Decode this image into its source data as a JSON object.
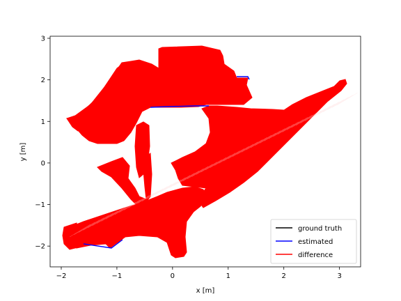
{
  "chart_data": {
    "type": "line",
    "title": "",
    "xlabel": "x [m]",
    "ylabel": "y [m]",
    "xlim": [
      -2.2,
      3.38
    ],
    "ylim": [
      -2.5,
      3.05
    ],
    "xticks": [
      -2,
      -1,
      0,
      1,
      2,
      3
    ],
    "xtick_labels": [
      "−2",
      "−1",
      "0",
      "1",
      "2",
      "3"
    ],
    "yticks": [
      -2,
      -1,
      0,
      1,
      2,
      3
    ],
    "ytick_labels": [
      "−2",
      "−1",
      "0",
      "1",
      "2",
      "3"
    ],
    "grid": false,
    "legend_position": "lower-right",
    "series": [
      {
        "name": "ground truth",
        "color": "#000000",
        "x": [
          -1.15,
          -1.0,
          -0.5,
          -0.2,
          0.2,
          0.6,
          1.0,
          1.4
        ],
        "y": [
          1.0,
          1.55,
          2.0,
          2.5,
          2.6,
          2.55,
          2.2,
          2.0
        ]
      },
      {
        "name": "estimated",
        "color": "#0000ff",
        "x": [
          -1.95,
          -1.7,
          -1.3,
          -1.1,
          -0.4,
          0.3,
          0.7,
          1.2,
          1.5,
          1.4,
          1.3,
          1.0,
          0.6,
          0.3,
          0.1,
          -0.2,
          -0.4,
          -0.3,
          0.6,
          1.5,
          2.5,
          3.1,
          2.0,
          0.8,
          -0.3,
          -1.2,
          -1.9,
          -1.7,
          -1.3,
          -1.1
        ],
        "y": [
          1.08,
          0.98,
          0.85,
          0.55,
          1.32,
          1.35,
          1.33,
          1.3,
          1.75,
          2.05,
          2.05,
          2.08,
          2.65,
          2.7,
          2.6,
          2.35,
          1.9,
          1.35,
          1.3,
          1.28,
          1.75,
          1.95,
          0.2,
          -0.6,
          -1.1,
          -1.55,
          -1.65,
          -1.95,
          -1.95,
          -2.05
        ]
      },
      {
        "name": "difference",
        "color": "#ff0000",
        "x": [
          -1.9,
          -1.5,
          -1.0,
          -0.5,
          0.0,
          0.5,
          1.0,
          1.5,
          2.0,
          2.5,
          3.1,
          2.6,
          2.0,
          1.5,
          0.8,
          0.3,
          -0.2,
          -0.7,
          -1.2,
          -1.7
        ],
        "y": [
          1.1,
          1.4,
          2.3,
          2.1,
          2.7,
          2.7,
          2.2,
          1.3,
          1.6,
          1.8,
          1.95,
          0.9,
          0.2,
          -0.4,
          -0.9,
          -1.1,
          -1.8,
          -1.7,
          -1.6,
          -1.9
        ]
      }
    ]
  }
}
